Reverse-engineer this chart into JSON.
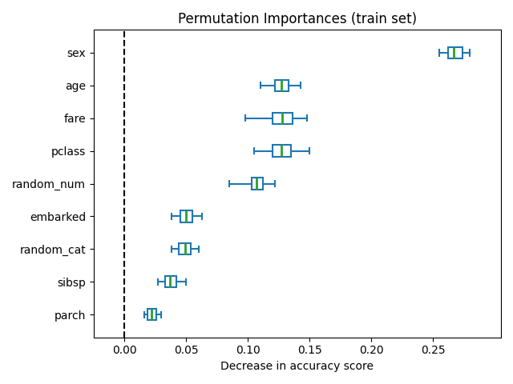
{
  "title": "Permutation Importances (train set)",
  "xlabel": "Decrease in accuracy score",
  "features": [
    "sex",
    "age",
    "fare",
    "pclass",
    "random_num",
    "embarked",
    "random_cat",
    "sibsp",
    "parch"
  ],
  "box_data": {
    "sex": {
      "whislo": 0.255,
      "q1": 0.262,
      "med": 0.267,
      "q3": 0.274,
      "whishi": 0.28
    },
    "age": {
      "whislo": 0.11,
      "q1": 0.122,
      "med": 0.127,
      "q3": 0.133,
      "whishi": 0.143
    },
    "fare": {
      "whislo": 0.098,
      "q1": 0.12,
      "med": 0.128,
      "q3": 0.136,
      "whishi": 0.148
    },
    "pclass": {
      "whislo": 0.105,
      "q1": 0.12,
      "med": 0.127,
      "q3": 0.135,
      "whishi": 0.15
    },
    "random_num": {
      "whislo": 0.085,
      "q1": 0.103,
      "med": 0.107,
      "q3": 0.112,
      "whishi": 0.122
    },
    "embarked": {
      "whislo": 0.038,
      "q1": 0.045,
      "med": 0.05,
      "q3": 0.055,
      "whishi": 0.063
    },
    "random_cat": {
      "whislo": 0.038,
      "q1": 0.044,
      "med": 0.049,
      "q3": 0.054,
      "whishi": 0.06
    },
    "sibsp": {
      "whislo": 0.027,
      "q1": 0.033,
      "med": 0.037,
      "q3": 0.042,
      "whishi": 0.05
    },
    "parch": {
      "whislo": 0.016,
      "q1": 0.019,
      "med": 0.022,
      "q3": 0.026,
      "whishi": 0.03
    }
  },
  "box_color": "#1f77b4",
  "median_color": "#2ca02c",
  "dashed_line_x": 0.0,
  "xlim": [
    -0.025,
    0.305
  ],
  "ylim": [
    0.3,
    9.7
  ],
  "figsize": [
    6.4,
    4.8
  ],
  "dpi": 100,
  "box_width": 0.35,
  "title_fontsize": 12,
  "label_fontsize": 10
}
